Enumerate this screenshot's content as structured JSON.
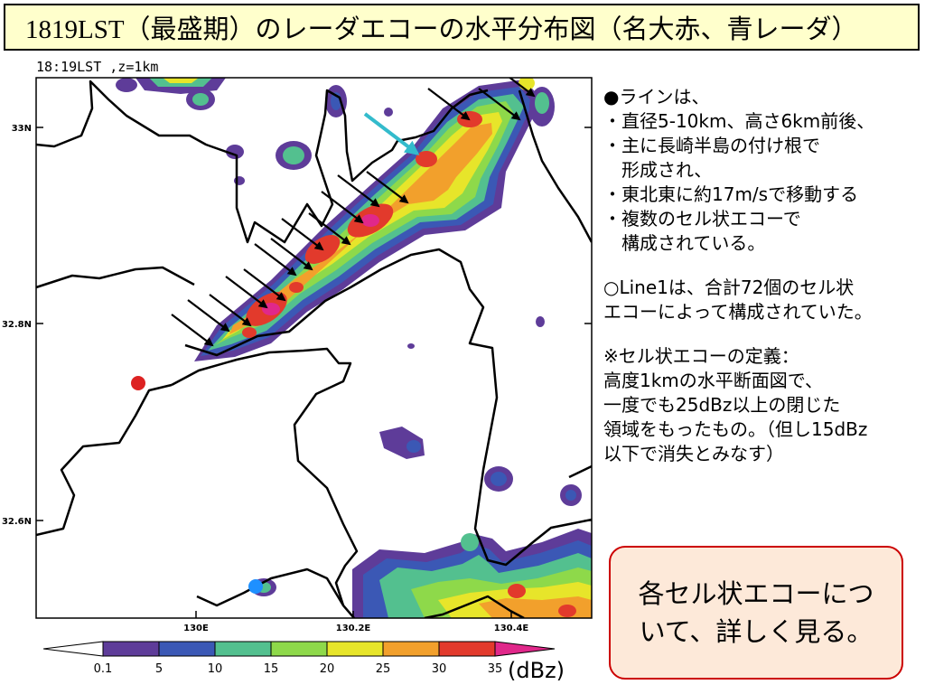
{
  "title": "1819LST（最盛期）のレーダエコーの水平分布図（名大赤、青レーダ）",
  "map": {
    "header": "18:19LST ,z=1km",
    "lat_ticks": [
      {
        "label": "33N",
        "value": 33.0
      },
      {
        "label": "32.8N",
        "value": 32.8
      },
      {
        "label": "32.6N",
        "value": 32.6
      }
    ],
    "lon_ticks": [
      {
        "label": "130E",
        "value": 130.0
      },
      {
        "label": "130.2E",
        "value": 130.2
      },
      {
        "label": "130.4E",
        "value": 130.4
      }
    ],
    "radar_red_color": "#dd2222",
    "radar_blue_color": "#1e90ff",
    "cyan_arrow_color": "#33bbcc"
  },
  "colorbar": {
    "labels": [
      "0.1",
      "5",
      "10",
      "15",
      "20",
      "25",
      "30",
      "35"
    ],
    "unit": "(dBz)",
    "colors": [
      "#ffffff",
      "#5e3c99",
      "#3b58b5",
      "#53c08f",
      "#8ed94a",
      "#e7e52a",
      "#f2a02c",
      "#e23a2c",
      "#e0288a"
    ]
  },
  "notes": {
    "lines": [
      "●ラインは、",
      "・直径5-10km、高さ6km前後、",
      "・主に長崎半島の付け根で",
      "　形成され、",
      "・東北東に約17m/sで移動する",
      "・複数のセル状エコーで",
      "　構成されている。",
      "",
      "○Line1は、合計72個のセル状",
      "エコーによって構成されていた。",
      "",
      "※セル状エコーの定義：",
      "高度1kmの水平断面図で、",
      "一度でも25dBz以上の閉じた",
      "領域をもったもの。（但し15dBz",
      "以下で消失とみなす）"
    ]
  },
  "callout": {
    "line1": "各セル状エコーにつ",
    "line2": "いて、詳しく見る。"
  }
}
